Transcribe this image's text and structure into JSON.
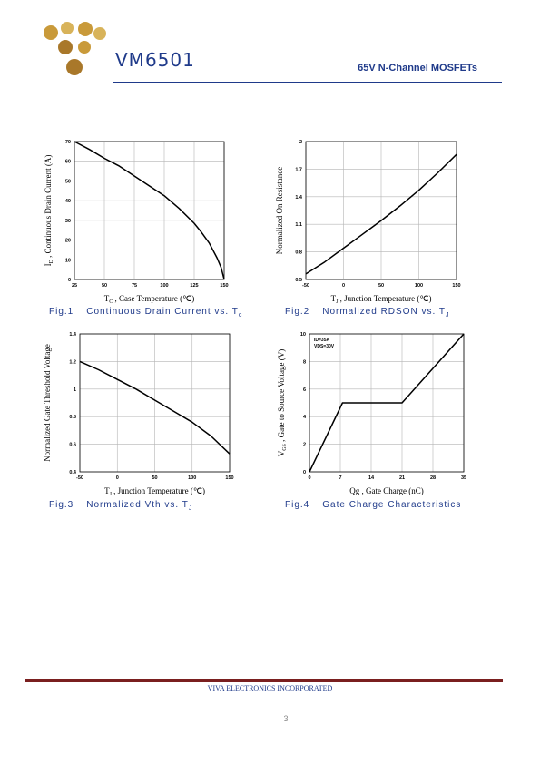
{
  "header": {
    "part_number": "VM6501",
    "subtitle": "65V N-Channel MOSFETs",
    "logo_colors": [
      "#c99a3a",
      "#a9782a",
      "#d8b35a"
    ]
  },
  "footer": {
    "company": "VIVA ELECTRONICS INCORPORATED",
    "page_number": "3"
  },
  "colors": {
    "accent": "#1f3a8a",
    "footer_rule": "#7a1f1f"
  },
  "chart_data": [
    {
      "type": "line",
      "caption": "Fig.1   Continuous Drain Current vs. Tc",
      "caption_fig": "Fig.1",
      "caption_text": "Continuous Drain Current vs. T",
      "caption_sub": "c",
      "xlabel_main": "T",
      "xlabel_sub": "C",
      "xlabel_rest": " , Case Temperature (℃)",
      "ylabel_main": "I",
      "ylabel_sub": "D",
      "ylabel_rest": " , Continuous Drain Current (A)",
      "xlim": [
        25,
        150
      ],
      "ylim": [
        0,
        70
      ],
      "x_ticks": [
        25,
        50,
        75,
        100,
        125,
        150
      ],
      "y_ticks": [
        0,
        10,
        20,
        30,
        40,
        50,
        60,
        70
      ],
      "grid": true,
      "series": [
        {
          "x": [
            25,
            37.5,
            50,
            62.5,
            75,
            87.5,
            100,
            112.5,
            125,
            131,
            137.5,
            144,
            147.5,
            150
          ],
          "y": [
            70,
            66,
            61.5,
            57.5,
            52.5,
            47.5,
            42.5,
            36,
            28.5,
            24,
            18.5,
            11,
            6,
            0
          ]
        }
      ]
    },
    {
      "type": "line",
      "caption": "Fig.2   Normalized RDSON vs. TJ",
      "caption_fig": "Fig.2",
      "caption_text": "Normalized RDSON vs. T",
      "caption_sub": "J",
      "xlabel_main": "T",
      "xlabel_sub": "J",
      "xlabel_rest": " , Junction Temperature (℃)",
      "ylabel_main": "Normalized On Resistance",
      "ylabel_sub": "",
      "ylabel_rest": "",
      "xlim": [
        -50,
        150
      ],
      "ylim": [
        0.5,
        2
      ],
      "x_ticks": [
        -50,
        0,
        50,
        100,
        150
      ],
      "y_ticks": [
        0.5,
        0.8,
        1.1,
        1.4,
        1.7,
        2
      ],
      "y_tick_labels": [
        "0.5",
        "0.8",
        "1.1",
        "1.4",
        "1.7",
        "2"
      ],
      "grid": true,
      "series": [
        {
          "x": [
            -50,
            -25,
            0,
            25,
            50,
            75,
            100,
            125,
            150
          ],
          "y": [
            0.56,
            0.69,
            0.84,
            0.99,
            1.14,
            1.3,
            1.47,
            1.66,
            1.86
          ]
        }
      ]
    },
    {
      "type": "line",
      "caption": "Fig.3   Normalized Vth vs. TJ",
      "caption_fig": "Fig.3",
      "caption_text": "Normalized Vth vs. T",
      "caption_sub": "J",
      "xlabel_main": "T",
      "xlabel_sub": "J",
      "xlabel_rest": " , Junction Temperature (℃)",
      "ylabel_main": "Normalized Gate Threshold Voltage",
      "ylabel_sub": "",
      "ylabel_rest": "",
      "xlim": [
        -50,
        150
      ],
      "ylim": [
        0.4,
        1.4
      ],
      "x_ticks": [
        -50,
        0,
        50,
        100,
        150
      ],
      "y_ticks": [
        0.4,
        0.6,
        0.8,
        1,
        1.2,
        1.4
      ],
      "y_tick_labels": [
        "0.4",
        "0.6",
        "0.8",
        "1",
        "1.2",
        "1.4"
      ],
      "grid": true,
      "series": [
        {
          "x": [
            -50,
            -25,
            0,
            25,
            50,
            75,
            100,
            125,
            150
          ],
          "y": [
            1.2,
            1.14,
            1.07,
            1.0,
            0.92,
            0.84,
            0.76,
            0.66,
            0.53
          ]
        }
      ]
    },
    {
      "type": "line",
      "caption": "Fig.4   Gate Charge Characteristics",
      "caption_fig": "Fig.4",
      "caption_text": "Gate Charge Characteristics",
      "caption_sub": "",
      "xlabel_main": "Qg",
      "xlabel_sub": "",
      "xlabel_rest": " , Gate Charge (nC)",
      "ylabel_main": "V",
      "ylabel_sub": "GS",
      "ylabel_rest": " , Gate to Source Voltage (V)",
      "xlim": [
        0,
        35
      ],
      "ylim": [
        0,
        10
      ],
      "x_ticks": [
        0,
        7,
        14,
        21,
        28,
        35
      ],
      "y_ticks": [
        0,
        2,
        4,
        6,
        8,
        10
      ],
      "grid": true,
      "annotations": [
        "ID=35A",
        "VDS=30V"
      ],
      "series": [
        {
          "x": [
            0,
            7.5,
            21,
            35
          ],
          "y": [
            0,
            5,
            5,
            10
          ]
        }
      ]
    }
  ]
}
